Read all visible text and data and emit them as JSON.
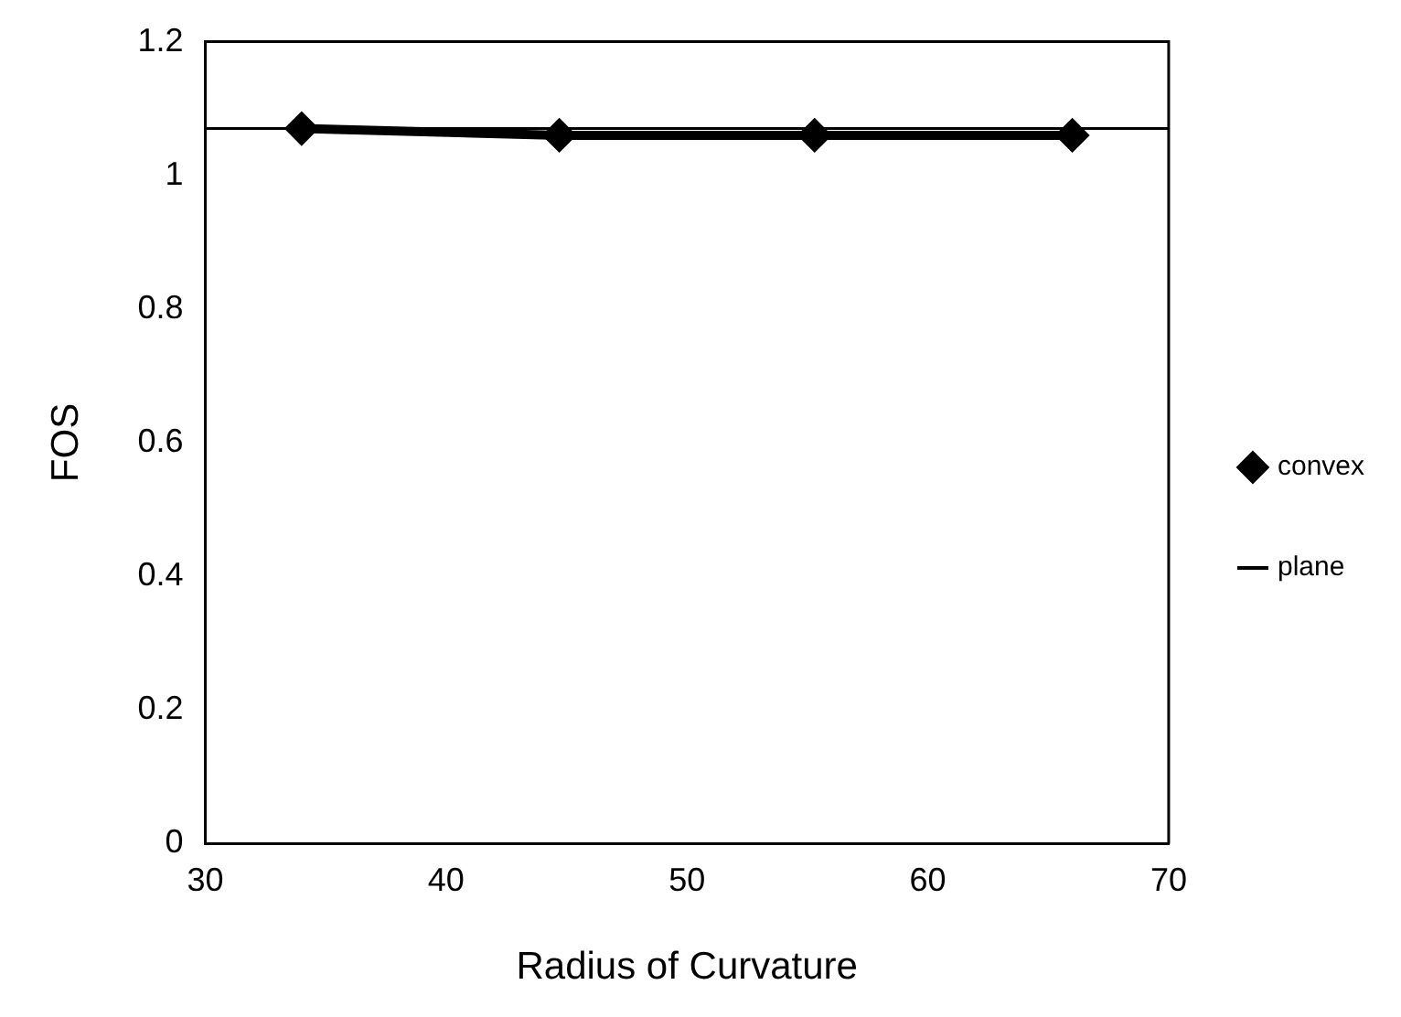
{
  "chart_data": {
    "type": "line",
    "xlabel": "Radius of Curvature",
    "ylabel": "FOS",
    "xlim": [
      30,
      70
    ],
    "xticks": [
      30,
      40,
      50,
      60,
      70
    ],
    "ylim": [
      0,
      1.2
    ],
    "yticks": [
      0,
      0.2,
      0.4,
      0.6,
      0.8,
      1,
      1.2
    ],
    "grid": false,
    "legend": "right",
    "series": [
      {
        "name": "convex",
        "color": "#000000",
        "x": [
          34,
          44.7,
          55.3,
          66
        ],
        "values": [
          1.07,
          1.06,
          1.06,
          1.06
        ],
        "marker": "diamond"
      },
      {
        "name": "plane",
        "color": "#000000",
        "x": [
          30,
          70
        ],
        "values": [
          1.07,
          1.07
        ],
        "marker": "none"
      }
    ]
  }
}
